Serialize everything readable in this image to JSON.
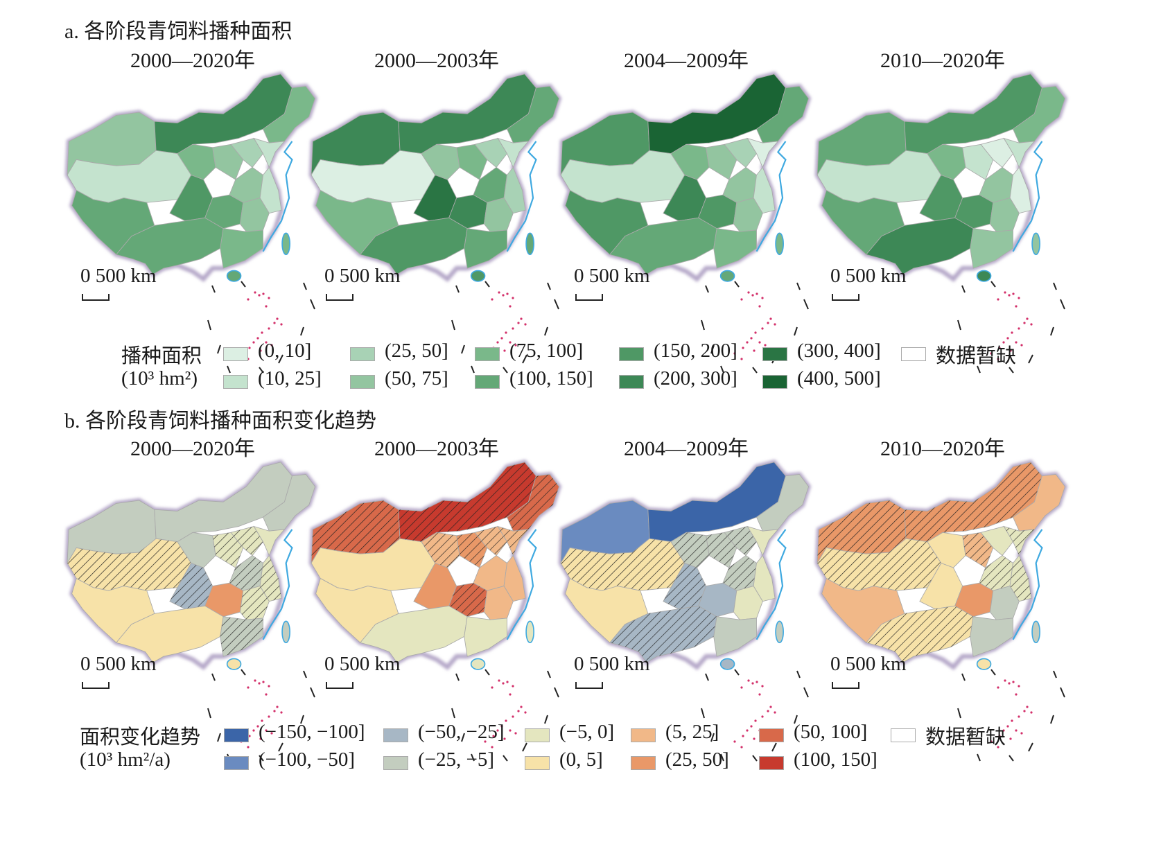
{
  "section_a": {
    "title": "a. 各阶段青饲料播种面积",
    "periods": [
      "2000—2020年",
      "2000—2003年",
      "2004—2009年",
      "2010—2020年"
    ],
    "scale_label": "0 500 km",
    "legend": {
      "heading_line1": "播种面积",
      "heading_line2": "(10³ hm²)",
      "items": [
        {
          "label": "(0, 10]",
          "color": "#dcefe3"
        },
        {
          "label": "(10, 25]",
          "color": "#c4e3ce"
        },
        {
          "label": "(25, 50]",
          "color": "#a8d2b5"
        },
        {
          "label": "(50, 75]",
          "color": "#93c5a0"
        },
        {
          "label": "(75, 100]",
          "color": "#7ab88a"
        },
        {
          "label": "(100, 150]",
          "color": "#64a877"
        },
        {
          "label": "(150, 200]",
          "color": "#4f9865"
        },
        {
          "label": "(200, 300]",
          "color": "#3d8856"
        },
        {
          "label": "(300, 400]",
          "color": "#2a7544"
        },
        {
          "label": "(400, 500]",
          "color": "#1a6434"
        },
        {
          "label": "数据暂缺",
          "color": "#ffffff"
        }
      ]
    }
  },
  "section_b": {
    "title": "b. 各阶段青饲料播种面积变化趋势",
    "periods": [
      "2000—2020年",
      "2000—2003年",
      "2004—2009年",
      "2010—2020年"
    ],
    "scale_label": "0 500 km",
    "legend": {
      "heading_line1": "面积变化趋势",
      "heading_line2": "(10³ hm²/a)",
      "items": [
        {
          "label": "(−150, −100]",
          "color": "#3b65a8"
        },
        {
          "label": "(−100, −50]",
          "color": "#6a8bc0"
        },
        {
          "label": "(−50, −25]",
          "color": "#a7b7c5"
        },
        {
          "label": "(−25, −5]",
          "color": "#c3cdbf"
        },
        {
          "label": "(−5, 0]",
          "color": "#e4e6bf"
        },
        {
          "label": "(0, 5]",
          "color": "#f7e2a8"
        },
        {
          "label": "(5, 25]",
          "color": "#f1b888"
        },
        {
          "label": "(25, 50]",
          "color": "#e99868"
        },
        {
          "label": "(50, 100]",
          "color": "#d8694a"
        },
        {
          "label": "(100, 150]",
          "color": "#c73a2e"
        },
        {
          "label": "数据暂缺",
          "color": "#ffffff"
        }
      ]
    }
  }
}
